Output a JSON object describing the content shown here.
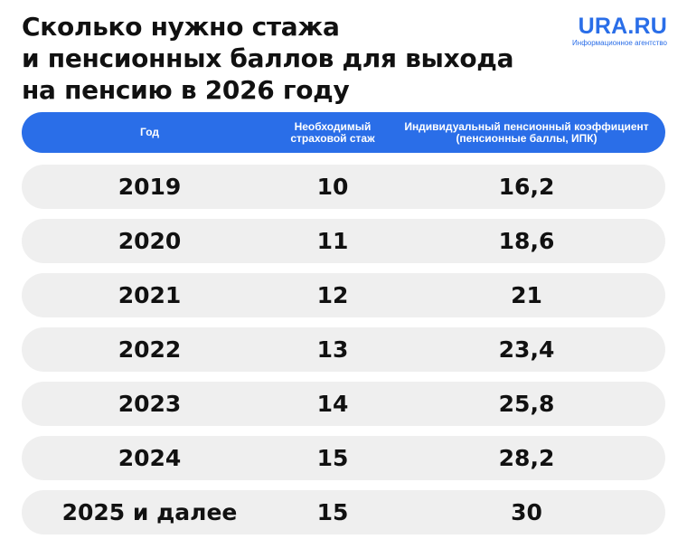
{
  "title": {
    "line1": "Сколько нужно стажа",
    "line2": "и пенсионных баллов для выхода",
    "line3": "на пенсию в 2026 году"
  },
  "logo": {
    "name": "URA.RU",
    "tagline": "Информационное агентство"
  },
  "table": {
    "headers": {
      "year": "Год",
      "experience": "Необходимый страховой стаж",
      "coefficient": "Индивидуальный пенсионный коэффициент (пенсионные баллы, ИПК)"
    },
    "rows": [
      {
        "year": "2019",
        "experience": "10",
        "points": "16,2"
      },
      {
        "year": "2020",
        "experience": "11",
        "points": "18,6"
      },
      {
        "year": "2021",
        "experience": "12",
        "points": "21"
      },
      {
        "year": "2022",
        "experience": "13",
        "points": "23,4"
      },
      {
        "year": "2023",
        "experience": "14",
        "points": "25,8"
      },
      {
        "year": "2024",
        "experience": "15",
        "points": "28,2"
      },
      {
        "year": "2025 и далее",
        "experience": "15",
        "points": "30"
      }
    ]
  },
  "colors": {
    "accent": "#2a6ee8",
    "row_background": "#efefef"
  }
}
